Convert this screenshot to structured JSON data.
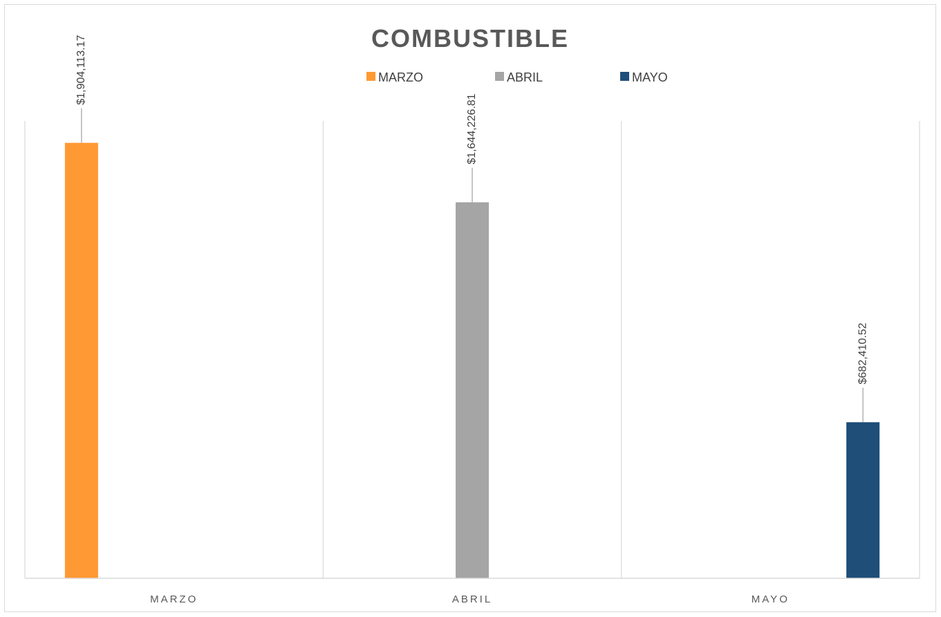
{
  "chart_data": {
    "type": "bar",
    "title": "COMBUSTIBLE",
    "categories": [
      "MARZO",
      "ABRIL",
      "MAYO"
    ],
    "series": [
      {
        "name": "MARZO",
        "color": "#FF9933",
        "category": "MARZO",
        "value": 1904113.17,
        "label": "$1,904,113.17"
      },
      {
        "name": "ABRIL",
        "color": "#A5A5A5",
        "category": "ABRIL",
        "value": 1644226.81,
        "label": "$1,644,226.81"
      },
      {
        "name": "MAYO",
        "color": "#1F4E79",
        "category": "MAYO",
        "value": 682410.52,
        "label": "$682,410.52"
      }
    ],
    "xlabel": "",
    "ylabel": "",
    "ylim": [
      0,
      2000000
    ],
    "legend_position": "top",
    "grid": "vertical category separators",
    "data_labels": "rotated with leader lines"
  }
}
